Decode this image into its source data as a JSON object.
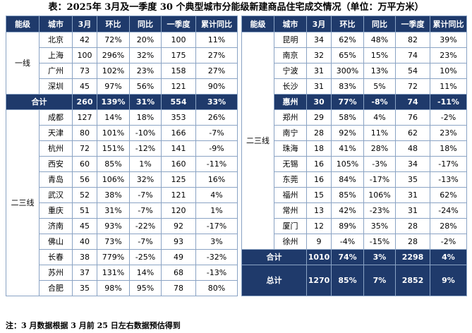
{
  "title": "表：2025年 3月及一季度 30 个典型城市分能级新建商品住宅成交情况（单位：万平方米）",
  "note": "注：3 月数据根据 3 月前 25 日左右数据预估得到",
  "headers": [
    "能级",
    "城市",
    "3月",
    "环比",
    "同比",
    "一季度",
    "累计同比"
  ],
  "left": {
    "tier1_label": "一线",
    "tier1_rows": [
      [
        "北京",
        "42",
        "72%",
        "20%",
        "100",
        "11%"
      ],
      [
        "上海",
        "100",
        "296%",
        "32%",
        "175",
        "27%"
      ],
      [
        "广州",
        "73",
        "102%",
        "23%",
        "158",
        "27%"
      ],
      [
        "深圳",
        "45",
        "97%",
        "56%",
        "121",
        "90%"
      ]
    ],
    "tier1_sum": [
      "合计",
      "260",
      "139%",
      "31%",
      "554",
      "33%"
    ],
    "tier2_label": "二三线",
    "tier2_rows": [
      [
        "成都",
        "127",
        "14%",
        "18%",
        "353",
        "26%"
      ],
      [
        "天津",
        "80",
        "101%",
        "-10%",
        "166",
        "-7%"
      ],
      [
        "杭州",
        "72",
        "151%",
        "-12%",
        "141",
        "-9%"
      ],
      [
        "西安",
        "60",
        "85%",
        "1%",
        "160",
        "-11%"
      ],
      [
        "青岛",
        "56",
        "106%",
        "32%",
        "125",
        "16%"
      ],
      [
        "武汉",
        "52",
        "38%",
        "-7%",
        "121",
        "4%"
      ],
      [
        "重庆",
        "51",
        "31%",
        "-7%",
        "120",
        "1%"
      ],
      [
        "济南",
        "45",
        "93%",
        "-22%",
        "92",
        "-17%"
      ],
      [
        "佛山",
        "40",
        "73%",
        "-7%",
        "93",
        "3%"
      ],
      [
        "长春",
        "38",
        "779%",
        "-25%",
        "49",
        "-32%"
      ],
      [
        "苏州",
        "37",
        "131%",
        "14%",
        "68",
        "-13%"
      ],
      [
        "合肥",
        "35",
        "98%",
        "95%",
        "78",
        "80%"
      ]
    ]
  },
  "right": {
    "tier_label": "二三线",
    "rows": [
      [
        "昆明",
        "34",
        "62%",
        "48%",
        "82",
        "39%"
      ],
      [
        "南京",
        "32",
        "65%",
        "15%",
        "74",
        "23%"
      ],
      [
        "宁波",
        "31",
        "300%",
        "13%",
        "54",
        "10%"
      ],
      [
        "长沙",
        "31",
        "83%",
        "5%",
        "72",
        "11%"
      ],
      [
        "惠州",
        "30",
        "77%",
        "-8%",
        "74",
        "-11%"
      ],
      [
        "郑州",
        "29",
        "58%",
        "4%",
        "76",
        "-2%"
      ],
      [
        "南宁",
        "28",
        "92%",
        "11%",
        "62",
        "23%"
      ],
      [
        "珠海",
        "18",
        "41%",
        "28%",
        "48",
        "18%"
      ],
      [
        "无锡",
        "16",
        "105%",
        "-3%",
        "34",
        "-17%"
      ],
      [
        "东莞",
        "16",
        "84%",
        "-17%",
        "35",
        "-13%"
      ],
      [
        "福州",
        "15",
        "85%",
        "106%",
        "31",
        "62%"
      ],
      [
        "常州",
        "13",
        "42%",
        "-23%",
        "31",
        "-24%"
      ],
      [
        "厦门",
        "12",
        "89%",
        "35%",
        "28",
        "28%"
      ],
      [
        "徐州",
        "9",
        "-4%",
        "-15%",
        "28",
        "-2%"
      ]
    ],
    "sum": [
      "合计",
      "1010",
      "74%",
      "3%",
      "2298",
      "4%"
    ],
    "total": [
      "总计",
      "1270",
      "85%",
      "7%",
      "2852",
      "9%"
    ]
  }
}
